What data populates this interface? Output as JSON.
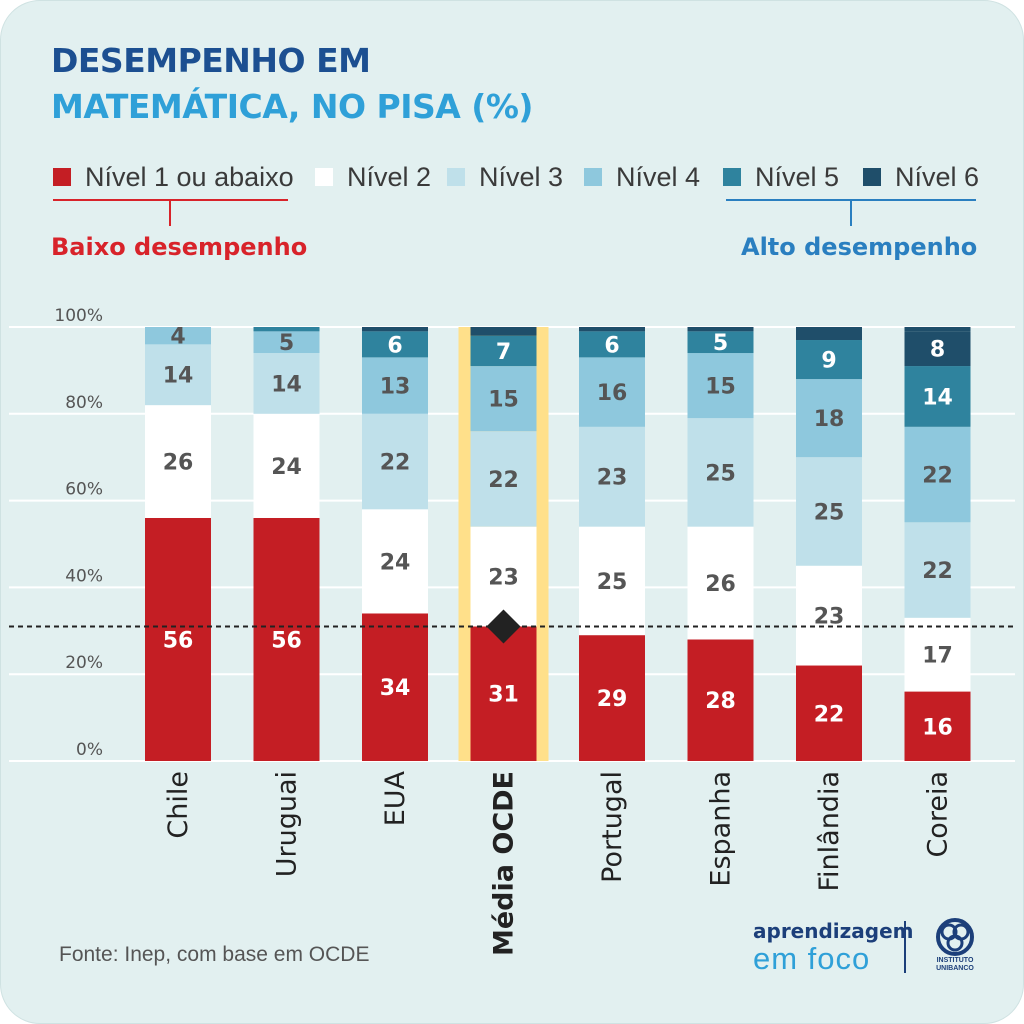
{
  "title": {
    "line1": "DESEMPENHO EM",
    "line2": "MATEMÁTICA, NO PISA (%)"
  },
  "legend": [
    {
      "label": "Nível 1 ou abaixo",
      "color": "#c41e24"
    },
    {
      "label": "Nível 2",
      "color": "#ffffff"
    },
    {
      "label": "Nível 3",
      "color": "#bfe0ea"
    },
    {
      "label": "Nível 4",
      "color": "#8ec8dd"
    },
    {
      "label": "Nível 5",
      "color": "#2f839e"
    },
    {
      "label": "Nível 6",
      "color": "#1f4e6a"
    }
  ],
  "groups": {
    "low": "Baixo desempenho",
    "high": "Alto desempenho"
  },
  "source": "Fonte: Inep, com base em OCDE",
  "logo": {
    "line1": "aprendizagem",
    "line2": "em foco",
    "org1": "INSTITUTO",
    "org2": "UNIBANCO"
  },
  "chart_data": {
    "type": "bar",
    "stacked": true,
    "categories": [
      "Chile",
      "Uruguai",
      "EUA",
      "Média OCDE",
      "Portugal",
      "Espanha",
      "Finlândia",
      "Coreia"
    ],
    "highlight": "Média OCDE",
    "reference_line": 31,
    "y_ticks": [
      "0%",
      "20%",
      "40%",
      "60%",
      "80%",
      "100%"
    ],
    "ylim": [
      0,
      100
    ],
    "series": [
      {
        "name": "Nível 1 ou abaixo",
        "values": [
          56,
          56,
          34,
          31,
          29,
          28,
          22,
          16
        ]
      },
      {
        "name": "Nível 2",
        "values": [
          26,
          24,
          24,
          23,
          25,
          26,
          23,
          17
        ]
      },
      {
        "name": "Nível 3",
        "values": [
          14,
          14,
          22,
          22,
          23,
          25,
          25,
          22
        ]
      },
      {
        "name": "Nível 4",
        "values": [
          4,
          5,
          13,
          15,
          16,
          15,
          18,
          22
        ]
      },
      {
        "name": "Nível 5",
        "values": [
          null,
          null,
          6,
          7,
          6,
          5,
          9,
          14
        ]
      },
      {
        "name": "Nível 6",
        "values": [
          null,
          null,
          null,
          null,
          null,
          null,
          null,
          8
        ]
      }
    ],
    "labels": [
      [
        "56",
        "26",
        "14",
        "4",
        "",
        ""
      ],
      [
        "56",
        "24",
        "14",
        "5",
        "",
        ""
      ],
      [
        "34",
        "24",
        "22",
        "13",
        "6",
        ""
      ],
      [
        "31",
        "23",
        "22",
        "15",
        "7",
        ""
      ],
      [
        "29",
        "25",
        "23",
        "16",
        "6",
        ""
      ],
      [
        "28",
        "26",
        "25",
        "15",
        "5",
        ""
      ],
      [
        "22",
        "23",
        "25",
        "18",
        "9",
        ""
      ],
      [
        "16",
        "17",
        "22",
        "22",
        "14",
        "8"
      ]
    ]
  }
}
